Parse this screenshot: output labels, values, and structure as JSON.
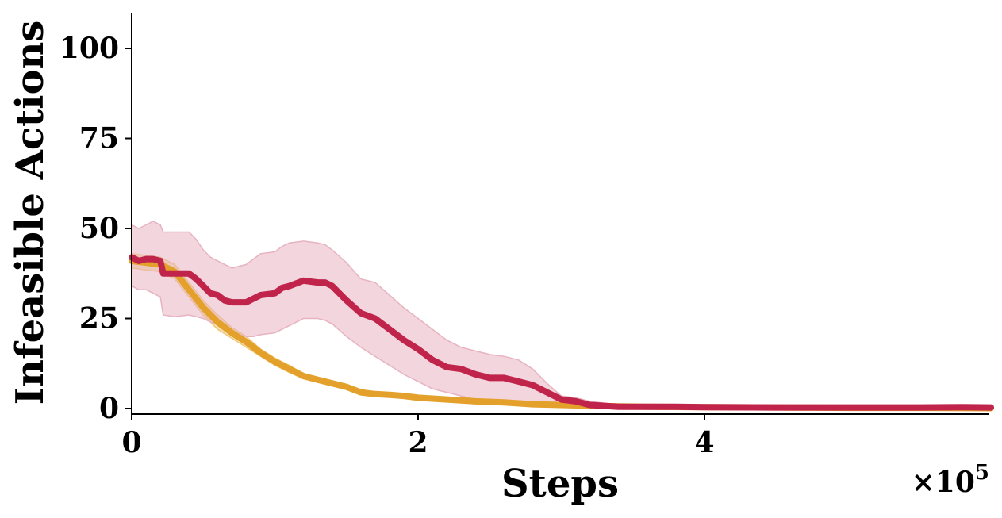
{
  "chart_data": {
    "type": "line",
    "xlabel": "Steps",
    "ylabel": "Infeasible Actions",
    "x_multiplier": "×10",
    "x_multiplier_exp": "5",
    "xlim": [
      0,
      6.0
    ],
    "ylim": [
      -2,
      110
    ],
    "x_ticks": [
      0,
      2,
      4
    ],
    "x_tick_labels": [
      "0",
      "2",
      "4"
    ],
    "y_ticks": [
      0,
      25,
      50,
      75,
      100
    ],
    "y_tick_labels": [
      "0",
      "25",
      "50",
      "75",
      "100"
    ],
    "grid": false,
    "legend": "none",
    "series": [
      {
        "color": "#E3A02A",
        "band_color": "#F0C777",
        "x": [
          0,
          0.1,
          0.2,
          0.3,
          0.4,
          0.5,
          0.6,
          0.7,
          0.8,
          0.9,
          1.0,
          1.1,
          1.2,
          1.3,
          1.4,
          1.5,
          1.6,
          1.7,
          1.8,
          1.9,
          2.0,
          2.2,
          2.4,
          2.6,
          2.8,
          3.0,
          3.2,
          3.4,
          3.6,
          4.0,
          4.5,
          5.0,
          5.5,
          6.0
        ],
        "y": [
          41,
          40.5,
          40,
          38,
          33,
          28,
          24,
          21,
          18.5,
          15.5,
          13,
          11,
          9,
          8,
          7,
          6,
          4.5,
          4,
          3.8,
          3.5,
          3,
          2.5,
          2,
          1.7,
          1.2,
          1,
          0.8,
          0.6,
          0.5,
          0.4,
          0.3,
          0.2,
          0.2,
          0.1
        ],
        "lower": [
          39,
          38.5,
          38,
          36,
          31,
          26,
          22,
          19.5,
          17,
          14.5,
          12,
          10,
          8.3,
          7.3,
          6.3,
          5.3,
          4,
          3.5,
          3.3,
          3,
          2.6,
          2.1,
          1.6,
          1.3,
          0.9,
          0.7,
          0.5,
          0.4,
          0.3,
          0.2,
          0.1,
          0,
          0,
          0
        ],
        "upper": [
          43,
          42.5,
          42,
          40,
          35,
          30,
          26,
          22.5,
          20,
          16.5,
          14,
          12,
          9.7,
          8.7,
          7.7,
          6.7,
          5,
          4.5,
          4.3,
          4,
          3.4,
          2.9,
          2.4,
          2.1,
          1.5,
          1.3,
          1.1,
          0.8,
          0.7,
          0.6,
          0.5,
          0.4,
          0.4,
          0.3
        ]
      },
      {
        "color": "#C0244B",
        "band_color": "#E7B3C1",
        "x": [
          0,
          0.05,
          0.1,
          0.15,
          0.2,
          0.22,
          0.3,
          0.4,
          0.45,
          0.5,
          0.55,
          0.6,
          0.65,
          0.7,
          0.8,
          0.85,
          0.9,
          1.0,
          1.05,
          1.1,
          1.2,
          1.3,
          1.35,
          1.4,
          1.5,
          1.6,
          1.7,
          1.8,
          1.9,
          2.0,
          2.1,
          2.2,
          2.3,
          2.4,
          2.5,
          2.6,
          2.7,
          2.8,
          2.9,
          3.0,
          3.1,
          3.2,
          3.4,
          3.6,
          3.8,
          4.0,
          4.5,
          5.0,
          5.5,
          5.8,
          6.0
        ],
        "y": [
          42,
          41,
          41.5,
          41.5,
          41,
          37.5,
          37.5,
          37.5,
          36,
          34,
          32,
          31.5,
          30,
          29.5,
          29.5,
          30.5,
          31.5,
          32,
          33.5,
          34,
          35.5,
          35,
          35,
          34,
          30,
          26.5,
          25,
          22,
          19,
          16.5,
          13.5,
          11.5,
          11,
          9.5,
          8.5,
          8.5,
          7.5,
          6.5,
          4.5,
          2.5,
          2,
          1,
          0.5,
          0.5,
          0.5,
          0.4,
          0.3,
          0.3,
          0.3,
          0.4,
          0.3
        ],
        "lower": [
          34,
          33,
          33,
          32,
          31,
          26,
          25.5,
          26,
          25.5,
          25,
          24,
          23.5,
          22,
          21,
          20,
          20,
          20.5,
          21,
          22,
          23,
          25,
          25,
          24.5,
          23.5,
          20,
          17,
          14.5,
          12,
          9.5,
          7.5,
          5.5,
          4.5,
          3.5,
          2.5,
          2,
          1.5,
          1,
          0.5,
          0.5,
          0.3,
          0.2,
          0.1,
          0,
          0,
          0,
          0,
          0,
          0,
          0,
          0,
          0
        ],
        "upper": [
          51,
          50,
          51,
          52,
          51,
          49,
          49,
          49,
          47,
          44,
          42,
          41,
          40,
          39,
          40,
          41.5,
          43,
          43.5,
          45,
          46,
          46.5,
          46,
          45.5,
          44,
          40.5,
          36,
          35,
          31.5,
          28,
          25,
          22,
          19,
          17,
          16,
          15,
          14.5,
          13.5,
          11,
          7,
          3.5,
          3,
          2,
          1,
          1,
          1,
          0.8,
          0.6,
          0.6,
          0.6,
          0.8,
          0.6
        ]
      }
    ]
  }
}
